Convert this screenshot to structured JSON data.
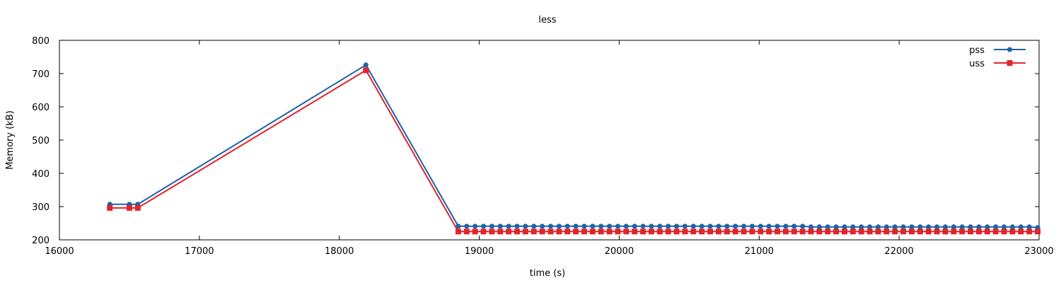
{
  "chart_data": {
    "type": "line",
    "title": "less",
    "xlabel": "time (s)",
    "ylabel": "Memory (kB)",
    "xlim": [
      16000,
      23000
    ],
    "ylim": [
      200,
      800
    ],
    "xticks": [
      16000,
      17000,
      18000,
      19000,
      20000,
      21000,
      22000,
      23000
    ],
    "yticks": [
      200,
      300,
      400,
      500,
      600,
      700,
      800
    ],
    "grid": false,
    "legend_position": "top-right",
    "series": [
      {
        "name": "pss",
        "color": "#1f62a6",
        "marker": "circle",
        "x": [
          16360,
          16500,
          16560,
          18190,
          18850,
          18910,
          18970,
          19030,
          19090,
          19150,
          19210,
          19270,
          19330,
          19390,
          19450,
          19510,
          19570,
          19630,
          19690,
          19750,
          19810,
          19870,
          19930,
          19990,
          20050,
          20110,
          20170,
          20230,
          20290,
          20350,
          20410,
          20470,
          20530,
          20590,
          20650,
          20710,
          20770,
          20830,
          20890,
          20950,
          21010,
          21070,
          21130,
          21190,
          21250,
          21310,
          21370,
          21430,
          21490,
          21550,
          21610,
          21670,
          21730,
          21790,
          21850,
          21910,
          21970,
          22030,
          22090,
          22150,
          22210,
          22270,
          22330,
          22390,
          22450,
          22510,
          22570,
          22630,
          22690,
          22750,
          22810,
          22870,
          22930,
          22990
        ],
        "values": [
          307,
          307,
          307,
          726,
          241,
          241,
          241,
          241,
          241,
          241,
          241,
          241,
          241,
          241,
          241,
          241,
          241,
          241,
          241,
          241,
          241,
          241,
          241,
          241,
          241,
          241,
          241,
          241,
          241,
          241,
          241,
          241,
          241,
          241,
          241,
          241,
          241,
          241,
          241,
          241,
          241,
          241,
          241,
          241,
          241,
          241,
          239,
          239,
          239,
          239,
          239,
          239,
          239,
          239,
          239,
          239,
          239,
          239,
          239,
          239,
          239,
          239,
          239,
          239,
          239,
          239,
          239,
          239,
          239,
          239,
          239,
          239,
          239,
          237
        ]
      },
      {
        "name": "uss",
        "color": "#e0242c",
        "marker": "square",
        "x": [
          16360,
          16500,
          16560,
          18190,
          18850,
          18910,
          18970,
          19030,
          19090,
          19150,
          19210,
          19270,
          19330,
          19390,
          19450,
          19510,
          19570,
          19630,
          19690,
          19750,
          19810,
          19870,
          19930,
          19990,
          20050,
          20110,
          20170,
          20230,
          20290,
          20350,
          20410,
          20470,
          20530,
          20590,
          20650,
          20710,
          20770,
          20830,
          20890,
          20950,
          21010,
          21070,
          21130,
          21190,
          21250,
          21310,
          21370,
          21430,
          21490,
          21550,
          21610,
          21670,
          21730,
          21790,
          21850,
          21910,
          21970,
          22030,
          22090,
          22150,
          22210,
          22270,
          22330,
          22390,
          22450,
          22510,
          22570,
          22630,
          22690,
          22750,
          22810,
          22870,
          22930,
          22990
        ],
        "values": [
          296,
          296,
          296,
          710,
          225,
          225,
          225,
          225,
          225,
          225,
          225,
          225,
          225,
          225,
          225,
          225,
          225,
          225,
          225,
          225,
          225,
          225,
          225,
          225,
          225,
          225,
          225,
          225,
          225,
          225,
          225,
          225,
          225,
          225,
          225,
          225,
          225,
          225,
          225,
          225,
          225,
          225,
          225,
          225,
          225,
          225,
          225,
          225,
          225,
          225,
          225,
          225,
          225,
          225,
          225,
          225,
          225,
          225,
          225,
          225,
          225,
          225,
          225,
          225,
          225,
          225,
          225,
          225,
          225,
          225,
          225,
          225,
          225,
          225
        ]
      }
    ]
  }
}
